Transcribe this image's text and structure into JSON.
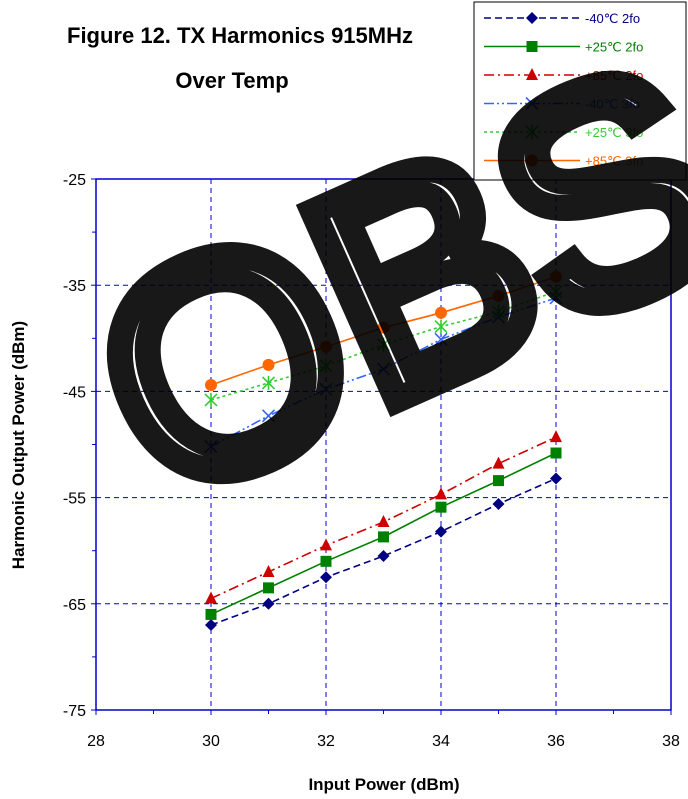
{
  "chart_data": {
    "type": "line",
    "title_lines": [
      "Figure 12. TX Harmonics 915MHz",
      "Over Temp"
    ],
    "xlabel": "Input Power (dBm)",
    "ylabel": "Harmonic Output Power (dBm)",
    "xlim": [
      28,
      38
    ],
    "ylim": [
      -75,
      -25
    ],
    "x_ticks": [
      "28",
      "30",
      "32",
      "34",
      "36",
      "38"
    ],
    "y_ticks": [
      "-25",
      "-35",
      "-45",
      "-55",
      "-65",
      "-75"
    ],
    "grid": true,
    "legend_position": "top-right",
    "x": [
      30,
      31,
      32,
      33,
      34,
      35,
      36
    ],
    "series": [
      {
        "name": "-40℃ 2fo",
        "color": "#000080",
        "marker": "diamond",
        "dash": "dashed",
        "values": [
          -67.0,
          -65.0,
          -62.5,
          -60.5,
          -58.2,
          -55.6,
          -53.2
        ]
      },
      {
        "name": "+25℃ 2fo",
        "color": "#008000",
        "marker": "square",
        "dash": "solid",
        "values": [
          -66.0,
          -63.5,
          -61.0,
          -58.7,
          -55.9,
          -53.4,
          -50.8
        ]
      },
      {
        "name": "+85℃ 2fo",
        "color": "#cc0000",
        "marker": "triangle",
        "dash": "dashdot",
        "values": [
          -64.5,
          -62.0,
          -59.5,
          -57.3,
          -54.7,
          -51.8,
          -49.3
        ]
      },
      {
        "name": "-40℃ 3fo",
        "color": "#3366ff",
        "marker": "x",
        "dash": "dashdotdot",
        "values": [
          -50.2,
          -47.3,
          -44.8,
          -42.9,
          -40.1,
          -38.0,
          -36.2
        ]
      },
      {
        "name": "+25℃ 3fo",
        "color": "#33cc33",
        "marker": "asterisk",
        "dash": "dotted",
        "values": [
          -45.8,
          -44.2,
          -42.6,
          -40.6,
          -38.9,
          -37.5,
          -35.6
        ]
      },
      {
        "name": "+85℃ 3fo",
        "color": "#ff6600",
        "marker": "circle",
        "dash": "solid",
        "values": [
          -44.4,
          -42.5,
          -40.8,
          -39.0,
          -37.6,
          -36.0,
          -34.2
        ]
      }
    ]
  },
  "watermark": {
    "text": "OBS",
    "opacity": 0.9
  }
}
